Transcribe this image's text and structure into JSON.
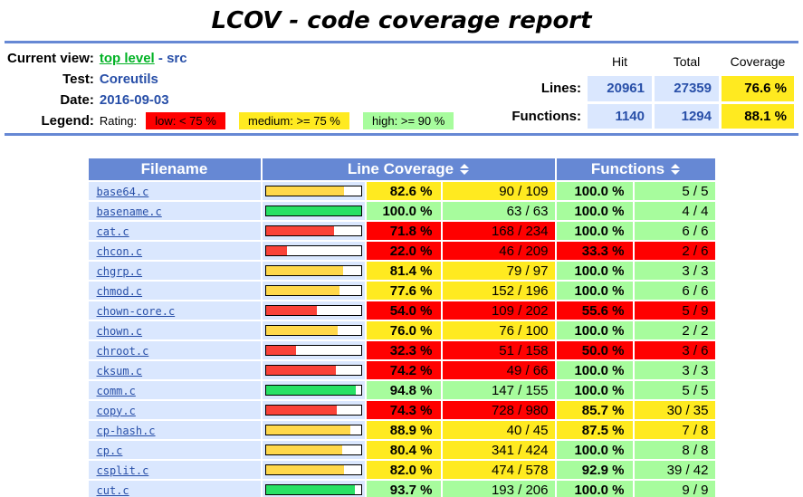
{
  "title": "LCOV - code coverage report",
  "header": {
    "current_view_label": "Current view:",
    "top_level_link": "top level",
    "separator": "-",
    "current_dir": "src",
    "test_label": "Test:",
    "test_value": "Coreutils",
    "date_label": "Date:",
    "date_value": "2016-09-03",
    "legend_label": "Legend:",
    "rating_label": "Rating:",
    "legend": [
      {
        "text": "low: < 75 %",
        "bg": "#FF0000"
      },
      {
        "text": "medium: >= 75 %",
        "bg": "#FFEA20"
      },
      {
        "text": "high: >= 90 %",
        "bg": "#A7FC9D"
      }
    ],
    "stats": {
      "col_headers": [
        "Hit",
        "Total",
        "Coverage"
      ],
      "rows": [
        {
          "label": "Lines:",
          "hit": "20961",
          "total": "27359",
          "coverage": "76.6 %"
        },
        {
          "label": "Functions:",
          "hit": "1140",
          "total": "1294",
          "coverage": "88.1 %"
        }
      ]
    }
  },
  "colors": {
    "header_blue": "#6688D4",
    "cell_light_blue": "#DAE7FE",
    "rating_low": "#FF0000",
    "rating_med": "#FFEA20",
    "rating_hi": "#A7FC9D",
    "bar_low": "#FA4238",
    "bar_med": "#FFD84B",
    "bar_hi": "#28E164",
    "link_blue": "#284FA8",
    "link_green": "#00B224"
  },
  "table": {
    "headers": {
      "filename": "Filename",
      "line_coverage": "Line Coverage",
      "functions": "Functions"
    },
    "rows": [
      {
        "name": "base64.c",
        "bar_pct": 82.6,
        "line_rating": "med",
        "line_pct": "82.6 %",
        "line_ratio": "90 / 109",
        "func_rating": "hi",
        "func_pct": "100.0 %",
        "func_ratio": "5 / 5"
      },
      {
        "name": "basename.c",
        "bar_pct": 100.0,
        "line_rating": "hi",
        "line_pct": "100.0 %",
        "line_ratio": "63 / 63",
        "func_rating": "hi",
        "func_pct": "100.0 %",
        "func_ratio": "4 / 4"
      },
      {
        "name": "cat.c",
        "bar_pct": 71.8,
        "line_rating": "low",
        "line_pct": "71.8 %",
        "line_ratio": "168 / 234",
        "func_rating": "hi",
        "func_pct": "100.0 %",
        "func_ratio": "6 / 6"
      },
      {
        "name": "chcon.c",
        "bar_pct": 22.0,
        "line_rating": "low",
        "line_pct": "22.0 %",
        "line_ratio": "46 / 209",
        "func_rating": "low",
        "func_pct": "33.3 %",
        "func_ratio": "2 / 6"
      },
      {
        "name": "chgrp.c",
        "bar_pct": 81.4,
        "line_rating": "med",
        "line_pct": "81.4 %",
        "line_ratio": "79 / 97",
        "func_rating": "hi",
        "func_pct": "100.0 %",
        "func_ratio": "3 / 3"
      },
      {
        "name": "chmod.c",
        "bar_pct": 77.6,
        "line_rating": "med",
        "line_pct": "77.6 %",
        "line_ratio": "152 / 196",
        "func_rating": "hi",
        "func_pct": "100.0 %",
        "func_ratio": "6 / 6"
      },
      {
        "name": "chown-core.c",
        "bar_pct": 54.0,
        "line_rating": "low",
        "line_pct": "54.0 %",
        "line_ratio": "109 / 202",
        "func_rating": "low",
        "func_pct": "55.6 %",
        "func_ratio": "5 / 9"
      },
      {
        "name": "chown.c",
        "bar_pct": 76.0,
        "line_rating": "med",
        "line_pct": "76.0 %",
        "line_ratio": "76 / 100",
        "func_rating": "hi",
        "func_pct": "100.0 %",
        "func_ratio": "2 / 2"
      },
      {
        "name": "chroot.c",
        "bar_pct": 32.3,
        "line_rating": "low",
        "line_pct": "32.3 %",
        "line_ratio": "51 / 158",
        "func_rating": "low",
        "func_pct": "50.0 %",
        "func_ratio": "3 / 6"
      },
      {
        "name": "cksum.c",
        "bar_pct": 74.2,
        "line_rating": "low",
        "line_pct": "74.2 %",
        "line_ratio": "49 / 66",
        "func_rating": "hi",
        "func_pct": "100.0 %",
        "func_ratio": "3 / 3"
      },
      {
        "name": "comm.c",
        "bar_pct": 94.8,
        "line_rating": "hi",
        "line_pct": "94.8 %",
        "line_ratio": "147 / 155",
        "func_rating": "hi",
        "func_pct": "100.0 %",
        "func_ratio": "5 / 5"
      },
      {
        "name": "copy.c",
        "bar_pct": 74.3,
        "line_rating": "low",
        "line_pct": "74.3 %",
        "line_ratio": "728 / 980",
        "func_rating": "med",
        "func_pct": "85.7 %",
        "func_ratio": "30 / 35"
      },
      {
        "name": "cp-hash.c",
        "bar_pct": 88.9,
        "line_rating": "med",
        "line_pct": "88.9 %",
        "line_ratio": "40 / 45",
        "func_rating": "med",
        "func_pct": "87.5 %",
        "func_ratio": "7 / 8"
      },
      {
        "name": "cp.c",
        "bar_pct": 80.4,
        "line_rating": "med",
        "line_pct": "80.4 %",
        "line_ratio": "341 / 424",
        "func_rating": "hi",
        "func_pct": "100.0 %",
        "func_ratio": "8 / 8"
      },
      {
        "name": "csplit.c",
        "bar_pct": 82.0,
        "line_rating": "med",
        "line_pct": "82.0 %",
        "line_ratio": "474 / 578",
        "func_rating": "hi",
        "func_pct": "92.9 %",
        "func_ratio": "39 / 42"
      },
      {
        "name": "cut.c",
        "bar_pct": 93.7,
        "line_rating": "hi",
        "line_pct": "93.7 %",
        "line_ratio": "193 / 206",
        "func_rating": "hi",
        "func_pct": "100.0 %",
        "func_ratio": "9 / 9"
      }
    ]
  }
}
